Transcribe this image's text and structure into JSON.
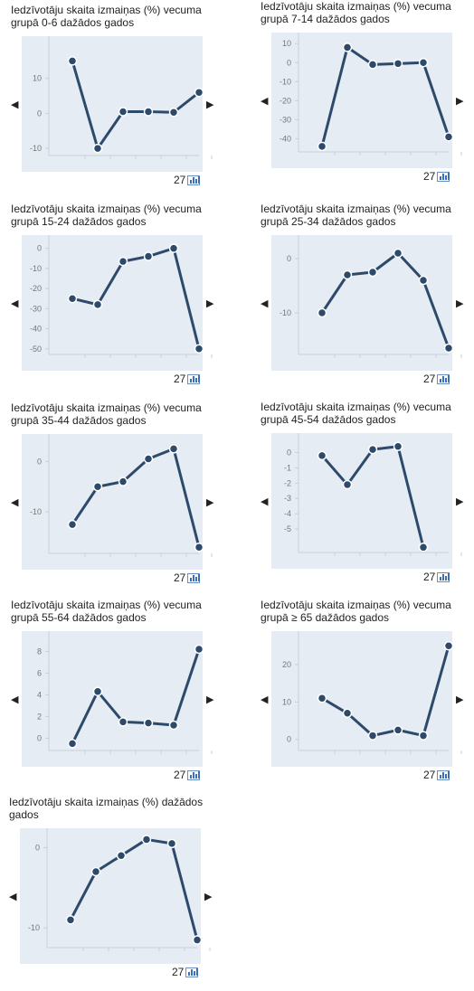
{
  "colors": {
    "line": "#2d4a6b",
    "plot_bg": "#e6ecf4",
    "axis": "#c8cfd9",
    "tick_text": "#777777"
  },
  "icons": {
    "prev": "left-triangle-icon",
    "next": "right-triangle-icon",
    "badge": "bar-chart-icon"
  },
  "panels": [
    {
      "title": "Iedzīvotāju skaita izmaiņas (%) vecuma grupā 0-6 dažādos gados",
      "badge": "27",
      "prev": "◀",
      "next": "▶"
    },
    {
      "title": "Iedzīvotāju skaita izmaiņas (%) vecuma grupā 7-14 dažādos gados",
      "badge": "27",
      "prev": "◀",
      "next": "▶"
    },
    {
      "title": "Iedzīvotāju skaita izmaiņas (%) vecuma grupā 15-24 dažādos gados",
      "badge": "27",
      "prev": "◀",
      "next": "▶"
    },
    {
      "title": "Iedzīvotāju skaita izmaiņas (%) vecuma grupā 25-34 dažādos gados",
      "badge": "27",
      "prev": "◀",
      "next": "▶"
    },
    {
      "title": "Iedzīvotāju skaita izmaiņas (%) vecuma grupā 35-44 dažādos gados",
      "badge": "27",
      "prev": "◀",
      "next": "▶"
    },
    {
      "title": "Iedzīvotāju skaita izmaiņas (%) vecuma grupā 45-54 dažādos gados",
      "badge": "27",
      "prev": "◀",
      "next": "▶"
    },
    {
      "title": "Iedzīvotāju skaita izmaiņas (%) vecuma grupā 55-64 dažādos gados",
      "badge": "27",
      "prev": "◀",
      "next": "▶"
    },
    {
      "title": "Iedzīvotāju skaita izmaiņas (%) vecuma grupā ≥ 65 dažādos gados",
      "badge": "27",
      "prev": "◀",
      "next": "▶"
    },
    {
      "title": "Iedzīvotāju skaita izmaiņas (%) dažādos gados",
      "badge": "27",
      "prev": "◀",
      "next": "▶"
    }
  ],
  "chart_data": [
    {
      "type": "line",
      "title": "Iedzīvotāju skaita izmaiņas (%) vecuma grupā 0-6 dažādos gados",
      "values": [
        15,
        -10,
        0.5,
        0.5,
        0.3,
        6
      ],
      "ylim": [
        -11,
        20
      ],
      "yticks": [
        -10,
        0,
        10
      ],
      "grid": false
    },
    {
      "type": "line",
      "title": "Iedzīvotāju skaita izmaiņas (%) vecuma grupā 7-14 dažādos gados",
      "values": [
        -44,
        8,
        -1,
        -0.5,
        0,
        -39
      ],
      "ylim": [
        -45,
        12
      ],
      "yticks": [
        -40,
        -30,
        -20,
        -10,
        0,
        10
      ],
      "grid": false
    },
    {
      "type": "line",
      "title": "Iedzīvotāju skaita izmaiņas (%) vecuma grupā 15-24 dažādos gados",
      "values": [
        -25,
        -28,
        -6.5,
        -4,
        0,
        -50
      ],
      "ylim": [
        -51,
        3
      ],
      "yticks": [
        -50,
        -40,
        -30,
        -20,
        -10,
        0
      ],
      "grid": false
    },
    {
      "type": "line",
      "title": "Iedzīvotāju skaita izmaiņas (%) vecuma grupā 25-34 dažādos gados",
      "values": [
        -10,
        -3,
        -2.5,
        1,
        -4,
        -16.5
      ],
      "ylim": [
        -17,
        3
      ],
      "yticks": [
        -10,
        0
      ],
      "grid": false
    },
    {
      "type": "line",
      "title": "Iedzīvotāju skaita izmaiņas (%) vecuma grupā 35-44 dažādos gados",
      "values": [
        -12.5,
        -5,
        -4,
        0.5,
        2.5,
        -17
      ],
      "ylim": [
        -17.5,
        4
      ],
      "yticks": [
        -10,
        0
      ],
      "grid": false
    },
    {
      "type": "line",
      "title": "Iedzīvotāju skaita izmaiņas (%) vecuma grupā 45-54 dažādos gados",
      "values": [
        -0.2,
        -2.1,
        0.2,
        0.4,
        -6.2
      ],
      "ylim": [
        -6.3,
        0.8
      ],
      "yticks": [
        -5,
        -4,
        -3,
        -2,
        -1,
        0
      ],
      "grid": false
    },
    {
      "type": "line",
      "title": "Iedzīvotāju skaita izmaiņas (%) vecuma grupā 55-64 dažādos gados",
      "values": [
        -0.5,
        4.3,
        1.5,
        1.4,
        1.2,
        8.2
      ],
      "ylim": [
        -0.8,
        9.2
      ],
      "yticks": [
        0,
        2,
        4,
        6,
        8
      ],
      "grid": false
    },
    {
      "type": "line",
      "title": "Iedzīvotāju skaita izmaiņas (%) vecuma grupā ≥ 65 dažādos gados",
      "values": [
        11,
        7,
        1,
        2.5,
        1,
        25
      ],
      "ylim": [
        -2,
        27
      ],
      "yticks": [
        0,
        10,
        20
      ],
      "grid": false
    },
    {
      "type": "line",
      "title": "Iedzīvotāju skaita izmaiņas (%) dažādos gados",
      "values": [
        -9,
        -3,
        -1,
        1,
        0.5,
        -11.5
      ],
      "ylim": [
        -12,
        1.5
      ],
      "yticks": [
        -10,
        0
      ],
      "grid": false
    }
  ]
}
